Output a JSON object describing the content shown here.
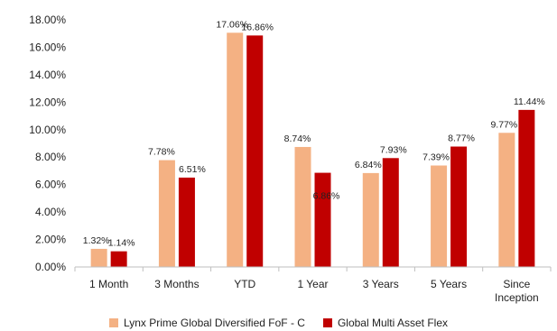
{
  "chart_data": {
    "type": "bar",
    "categories": [
      "1 Month",
      "3 Months",
      "YTD",
      "1 Year",
      "3 Years",
      "5 Years",
      "Since Inception"
    ],
    "series": [
      {
        "name": "Lynx Prime Global Diversified FoF - C",
        "color": "#f4b183",
        "values": [
          1.32,
          7.78,
          17.06,
          8.74,
          6.84,
          7.39,
          9.77
        ],
        "labels": [
          "1.32%",
          "7.78%",
          "17.06%",
          "8.74%",
          "6.84%",
          "7.39%",
          "9.77%"
        ]
      },
      {
        "name": "Global Multi Asset Flex",
        "color": "#c00000",
        "values": [
          1.14,
          6.51,
          16.86,
          6.86,
          7.93,
          8.77,
          11.44
        ],
        "labels": [
          "1.14%",
          "6.51%",
          "16.86%",
          "6.86%",
          "7.93%",
          "8.77%",
          "11.44%"
        ]
      }
    ],
    "yticks": [
      "0.00%",
      "2.00%",
      "4.00%",
      "6.00%",
      "8.00%",
      "10.00%",
      "12.00%",
      "14.00%",
      "16.00%",
      "18.00%"
    ],
    "ylim": [
      0,
      18
    ],
    "grid": false,
    "legend_position": "bottom"
  }
}
